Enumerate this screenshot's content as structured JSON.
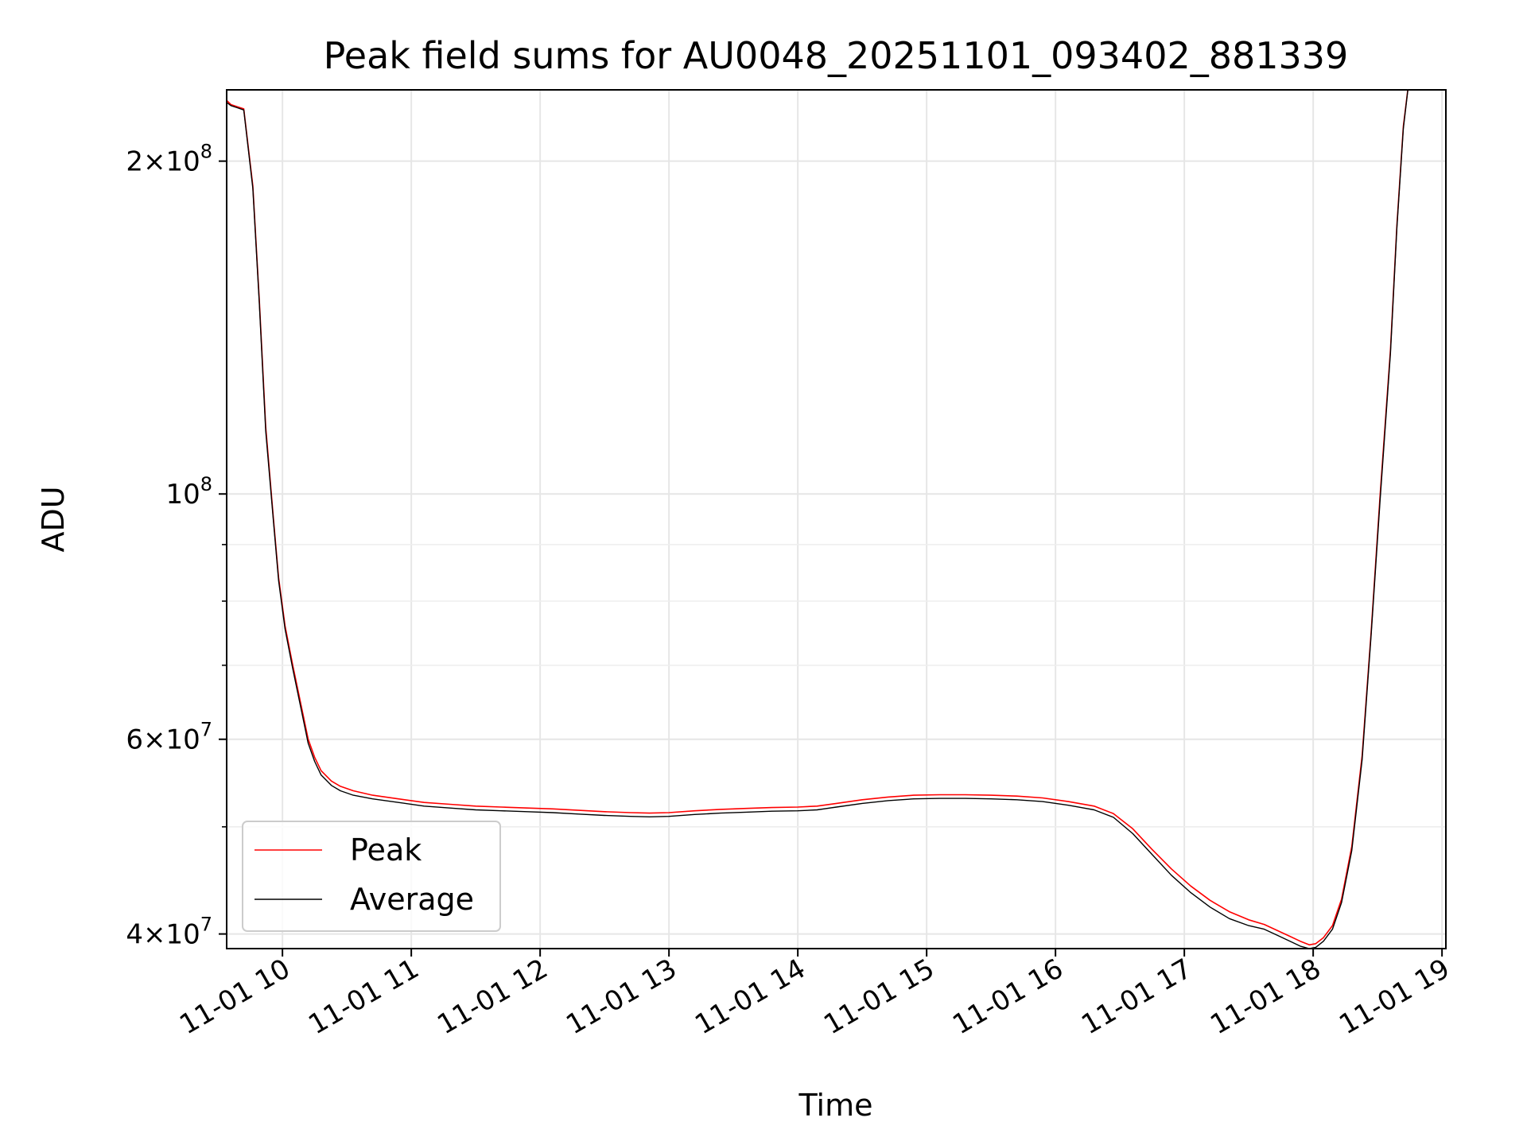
{
  "chart_data": {
    "type": "line",
    "title": "Peak field sums for AU0048_20251101_093402_881339",
    "xlabel": "Time",
    "ylabel": "ADU",
    "yscale": "log",
    "xlim": [
      9.567,
      19.03
    ],
    "ylim": [
      38800000,
      232000000
    ],
    "grid": true,
    "legend_position": "lower-left",
    "x_ticks": [
      {
        "value": 10,
        "label": "11-01 10"
      },
      {
        "value": 11,
        "label": "11-01 11"
      },
      {
        "value": 12,
        "label": "11-01 12"
      },
      {
        "value": 13,
        "label": "11-01 13"
      },
      {
        "value": 14,
        "label": "11-01 14"
      },
      {
        "value": 15,
        "label": "11-01 15"
      },
      {
        "value": 16,
        "label": "11-01 16"
      },
      {
        "value": 17,
        "label": "11-01 17"
      },
      {
        "value": 18,
        "label": "11-01 18"
      },
      {
        "value": 19,
        "label": "11-01 19"
      }
    ],
    "y_major_ticks": [
      {
        "value": 40000000,
        "mantissa": "4",
        "exponent": "7"
      },
      {
        "value": 60000000,
        "mantissa": "6",
        "exponent": "7"
      },
      {
        "value": 100000000,
        "mantissa": "",
        "exponent": "8"
      },
      {
        "value": 200000000,
        "mantissa": "2",
        "exponent": "8"
      }
    ],
    "y_minor_ticks": [
      50000000,
      70000000,
      80000000,
      90000000
    ],
    "times_symbol": "×",
    "tick_base": "10",
    "series": [
      {
        "name": "Peak",
        "color": "#ff0000",
        "x": [
          9.567,
          9.6,
          9.65,
          9.7,
          9.77,
          9.82,
          9.87,
          9.93,
          9.97,
          10.02,
          10.08,
          10.15,
          10.2,
          10.25,
          10.3,
          10.38,
          10.45,
          10.55,
          10.7,
          10.9,
          11.1,
          11.3,
          11.5,
          11.7,
          11.9,
          12.1,
          12.3,
          12.5,
          12.7,
          12.85,
          13.0,
          13.2,
          13.4,
          13.6,
          13.8,
          14.0,
          14.15,
          14.3,
          14.5,
          14.7,
          14.9,
          15.1,
          15.3,
          15.5,
          15.7,
          15.9,
          16.1,
          16.3,
          16.45,
          16.6,
          16.75,
          16.9,
          17.05,
          17.2,
          17.35,
          17.5,
          17.62,
          17.72,
          17.82,
          17.9,
          17.97,
          18.02,
          18.08,
          18.15,
          18.22,
          18.3,
          18.38,
          18.45,
          18.52,
          18.6,
          18.65,
          18.7,
          18.75
        ],
        "values": [
          227000000,
          225000000,
          224000000,
          223000000,
          190000000,
          150000000,
          115000000,
          95000000,
          84000000,
          76000000,
          70000000,
          64000000,
          60000000,
          57800000,
          56200000,
          55000000,
          54400000,
          53900000,
          53400000,
          53000000,
          52600000,
          52400000,
          52200000,
          52100000,
          52000000,
          51900000,
          51750000,
          51600000,
          51500000,
          51450000,
          51500000,
          51700000,
          51850000,
          51950000,
          52050000,
          52100000,
          52200000,
          52500000,
          52900000,
          53200000,
          53400000,
          53450000,
          53450000,
          53400000,
          53300000,
          53100000,
          52700000,
          52200000,
          51400000,
          49800000,
          47700000,
          45800000,
          44200000,
          42900000,
          41900000,
          41200000,
          40800000,
          40300000,
          39800000,
          39400000,
          39100000,
          39200000,
          39700000,
          40700000,
          43000000,
          48000000,
          58000000,
          75000000,
          100000000,
          135000000,
          175000000,
          215000000,
          240000000
        ]
      },
      {
        "name": "Average",
        "color": "#000000",
        "x": [
          9.567,
          9.6,
          9.65,
          9.7,
          9.77,
          9.82,
          9.87,
          9.93,
          9.97,
          10.02,
          10.08,
          10.15,
          10.2,
          10.25,
          10.3,
          10.38,
          10.45,
          10.55,
          10.7,
          10.9,
          11.1,
          11.3,
          11.5,
          11.7,
          11.9,
          12.1,
          12.3,
          12.5,
          12.7,
          12.85,
          13.0,
          13.2,
          13.4,
          13.6,
          13.8,
          14.0,
          14.15,
          14.3,
          14.5,
          14.7,
          14.9,
          15.1,
          15.3,
          15.5,
          15.7,
          15.9,
          16.1,
          16.3,
          16.45,
          16.6,
          16.75,
          16.9,
          17.05,
          17.2,
          17.35,
          17.5,
          17.62,
          17.72,
          17.82,
          17.9,
          17.97,
          18.02,
          18.08,
          18.15,
          18.22,
          18.3,
          18.38,
          18.45,
          18.52,
          18.6,
          18.65,
          18.7,
          18.75
        ],
        "values": [
          226000000,
          224500000,
          223500000,
          222500000,
          189000000,
          149000000,
          114000000,
          94500000,
          83500000,
          75500000,
          69500000,
          63500000,
          59500000,
          57300000,
          55700000,
          54500000,
          53900000,
          53400000,
          53000000,
          52600000,
          52200000,
          52000000,
          51800000,
          51700000,
          51600000,
          51500000,
          51350000,
          51200000,
          51100000,
          51050000,
          51100000,
          51300000,
          51450000,
          51550000,
          51650000,
          51700000,
          51800000,
          52100000,
          52500000,
          52800000,
          53000000,
          53050000,
          53050000,
          53000000,
          52900000,
          52700000,
          52300000,
          51800000,
          51000000,
          49300000,
          47200000,
          45200000,
          43600000,
          42300000,
          41300000,
          40700000,
          40400000,
          39900000,
          39400000,
          39000000,
          38800000,
          38900000,
          39400000,
          40400000,
          42700000,
          47600000,
          57500000,
          74500000,
          99000000,
          134000000,
          174000000,
          214000000,
          240000000
        ]
      }
    ]
  }
}
